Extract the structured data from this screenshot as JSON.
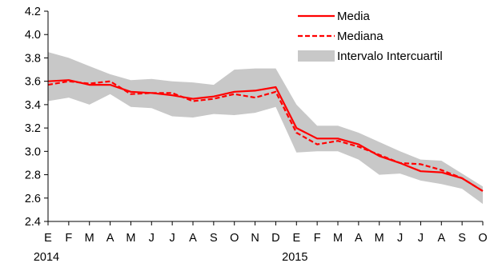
{
  "chart_data": {
    "type": "line",
    "x": [
      "E",
      "F",
      "M",
      "A",
      "M",
      "J",
      "J",
      "A",
      "S",
      "O",
      "N",
      "D",
      "E",
      "F",
      "M",
      "A",
      "M",
      "J",
      "J",
      "A",
      "S",
      "O"
    ],
    "year_labels": [
      {
        "index": 0,
        "label": "2014"
      },
      {
        "index": 12,
        "label": "2015"
      }
    ],
    "ylim": [
      2.4,
      4.2
    ],
    "yticks": [
      "2.4",
      "2.6",
      "2.8",
      "3.0",
      "3.2",
      "3.4",
      "3.6",
      "3.8",
      "4.0",
      "4.2"
    ],
    "grid": false,
    "legend_position": "top-right",
    "series": [
      {
        "name": "Media",
        "style": "solid",
        "color": "#ff0000",
        "values": [
          3.6,
          3.61,
          3.57,
          3.57,
          3.51,
          3.5,
          3.48,
          3.45,
          3.47,
          3.51,
          3.52,
          3.55,
          3.2,
          3.11,
          3.11,
          3.06,
          2.96,
          2.9,
          2.83,
          2.82,
          2.77,
          2.66
        ]
      },
      {
        "name": "Mediana",
        "style": "dashed",
        "color": "#ff0000",
        "values": [
          3.57,
          3.6,
          3.58,
          3.6,
          3.49,
          3.5,
          3.5,
          3.43,
          3.45,
          3.49,
          3.46,
          3.51,
          3.16,
          3.06,
          3.09,
          3.04,
          2.97,
          2.9,
          2.89,
          2.84,
          2.77,
          2.66
        ]
      }
    ],
    "band": {
      "name": "Intervalo Intercuartil",
      "color": "#c8c8c8",
      "lower": [
        3.43,
        3.46,
        3.4,
        3.49,
        3.38,
        3.37,
        3.3,
        3.29,
        3.32,
        3.31,
        3.33,
        3.38,
        2.99,
        3.0,
        3.0,
        2.93,
        2.8,
        2.81,
        2.75,
        2.72,
        2.68,
        2.55
      ],
      "upper": [
        3.85,
        3.8,
        3.73,
        3.66,
        3.61,
        3.62,
        3.6,
        3.59,
        3.57,
        3.7,
        3.71,
        3.71,
        3.4,
        3.22,
        3.22,
        3.16,
        3.08,
        3.0,
        2.93,
        2.92,
        2.81,
        2.7
      ]
    }
  }
}
